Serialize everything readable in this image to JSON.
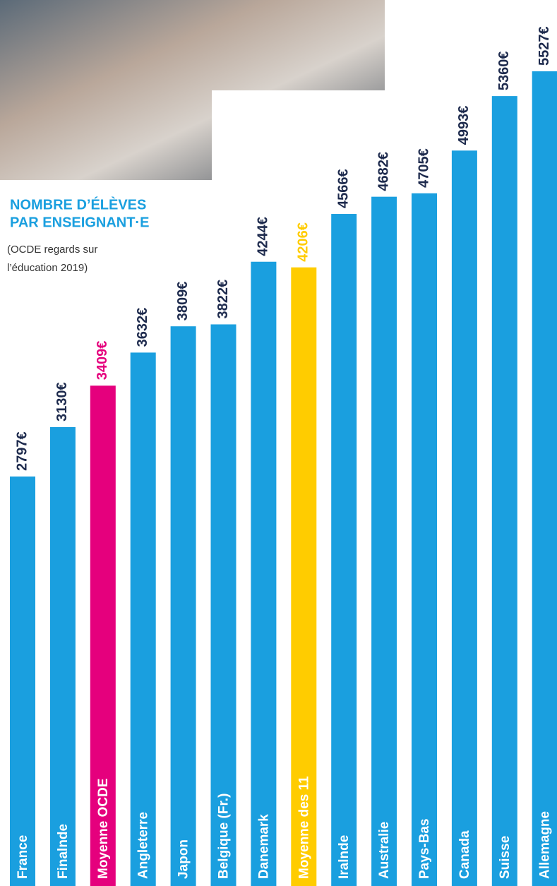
{
  "chart_data": {
    "type": "bar",
    "title": [
      "NOMBRE D’ÉLÈVES",
      "PAR ENSEIGNANT·E"
    ],
    "subtitle": [
      "(OCDE regards sur",
      "l’éducation 2019)"
    ],
    "categories": [
      "France",
      "Finalnde",
      "Moyenne OCDE",
      "Angleterre",
      "Japon",
      "Belgique (Fr.)",
      "Danemark",
      "Moyenne des 11",
      "Iralnde",
      "Australie",
      "Pays-Bas",
      "Canada",
      "Suisse",
      "Allemagne"
    ],
    "values": [
      2797,
      3130,
      3409,
      3632,
      3809,
      3822,
      4244,
      4206,
      4566,
      4682,
      4705,
      4993,
      5360,
      5527
    ],
    "value_labels": [
      "2797€",
      "3130€",
      "3409€",
      "3632€",
      "3809€",
      "3822€",
      "4244€",
      "4206€",
      "4566€",
      "4682€",
      "4705€",
      "4993€",
      "5360€",
      "5527€"
    ],
    "colors": [
      "#1a9fdf",
      "#1a9fdf",
      "#e5007d",
      "#1a9fdf",
      "#1a9fdf",
      "#1a9fdf",
      "#1a9fdf",
      "#ffcc00",
      "#1a9fdf",
      "#1a9fdf",
      "#1a9fdf",
      "#1a9fdf",
      "#1a9fdf",
      "#1a9fdf"
    ],
    "value_label_colors": [
      "#1d2a4d",
      "#1d2a4d",
      "#e5007d",
      "#1d2a4d",
      "#1d2a4d",
      "#1d2a4d",
      "#1d2a4d",
      "#ffcc00",
      "#1d2a4d",
      "#1d2a4d",
      "#1d2a4d",
      "#1d2a4d",
      "#1d2a4d",
      "#1d2a4d"
    ]
  }
}
